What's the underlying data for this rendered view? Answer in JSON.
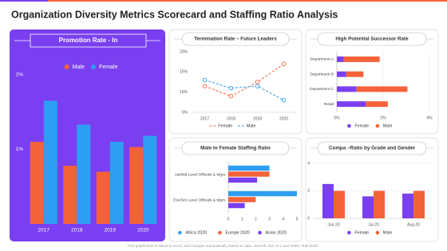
{
  "title": "Organization Diversity Metrics Scorecard and Staffing Ratio Analysis",
  "footnote": "This graph/chart is linked to excel, and changes automatically based on data. Just left click on it and select \"Edit Data\".",
  "chart_data": [
    {
      "type": "bar",
      "title": "Promotion Rate - In",
      "categories": [
        "2017",
        "2018",
        "2019",
        "2020"
      ],
      "series": [
        {
          "name": "Male",
          "color": "#f4623a",
          "values": [
            1.1,
            0.78,
            0.7,
            1.03
          ]
        },
        {
          "name": "Female",
          "color": "#2e9ef2",
          "values": [
            1.65,
            1.33,
            1.1,
            1.18
          ]
        }
      ],
      "ylim": [
        0,
        2.2
      ],
      "yticks": [
        {
          "value": 1,
          "label": "1%"
        },
        {
          "value": 2,
          "label": "2%"
        }
      ],
      "grid": false,
      "legend": "top"
    },
    {
      "type": "line",
      "title": "Termination Rate – Future Leaders",
      "categories": [
        "2017",
        "2018",
        "2018",
        "2020"
      ],
      "series": [
        {
          "name": "Female",
          "color": "#f4623a",
          "values": [
            11.5,
            9,
            12.5,
            17
          ]
        },
        {
          "name": "Male",
          "color": "#2e9ef2",
          "values": [
            13,
            11,
            11.5,
            8
          ]
        }
      ],
      "ylim": [
        5,
        20
      ],
      "yticks": [
        {
          "value": 20,
          "label": "20%"
        },
        {
          "value": 15,
          "label": "15%"
        },
        {
          "value": 10,
          "label": "10%"
        },
        {
          "value": 5,
          "label": "5%"
        }
      ],
      "grid": false,
      "legend": "bottom"
    },
    {
      "type": "barh",
      "stacked": true,
      "title": "High Potential Successor Rate",
      "categories": [
        "Department A",
        "Department B",
        "Department C",
        "Retail"
      ],
      "series": [
        {
          "name": "Female",
          "color": "#7a3ff0",
          "values": [
            0.3,
            0.4,
            0.85,
            1.25
          ]
        },
        {
          "name": "Male",
          "color": "#f4623a",
          "values": [
            1.55,
            0.75,
            2.2,
            0.95
          ]
        }
      ],
      "xlim": [
        0,
        4
      ],
      "xticks": [
        {
          "value": 0,
          "label": "0%"
        },
        {
          "value": 2,
          "label": "2%"
        },
        {
          "value": 4,
          "label": "4%"
        }
      ],
      "grid": true,
      "legend": "bottom"
    },
    {
      "type": "barh",
      "stacked": false,
      "title": "Male to Female Staffing Ratio",
      "categories": [
        "1st/Mid Level Officials & Mgrs",
        "Exe/Snr Level Officials & Mgrs"
      ],
      "series": [
        {
          "name": "Africa 2020",
          "color": "#2e9ef2",
          "values": [
            3.0,
            5.0
          ]
        },
        {
          "name": "Europe 2020",
          "color": "#f4623a",
          "values": [
            3.0,
            2.0
          ]
        },
        {
          "name": "Asian 2020",
          "color": "#7a3ff0",
          "values": [
            2.1,
            1.2
          ]
        }
      ],
      "xlim": [
        0,
        5
      ],
      "xticks": [
        0,
        1,
        2,
        3,
        4,
        5
      ],
      "grid": false,
      "legend": "bottom"
    },
    {
      "type": "bar",
      "title": "Compa –Ratio by Grade and Gender",
      "categories": [
        "Jun-20",
        "Jul-20",
        "Aug-20"
      ],
      "series": [
        {
          "name": "Female",
          "color": "#7a3ff0",
          "values": [
            2.5,
            1.6,
            1.8
          ]
        },
        {
          "name": "Male",
          "color": "#f4623a",
          "values": [
            2.0,
            2.0,
            2.0
          ]
        }
      ],
      "ylim": [
        0,
        4
      ],
      "yticks": [
        0,
        2,
        4
      ],
      "grid": true,
      "legend": "bottom"
    }
  ]
}
